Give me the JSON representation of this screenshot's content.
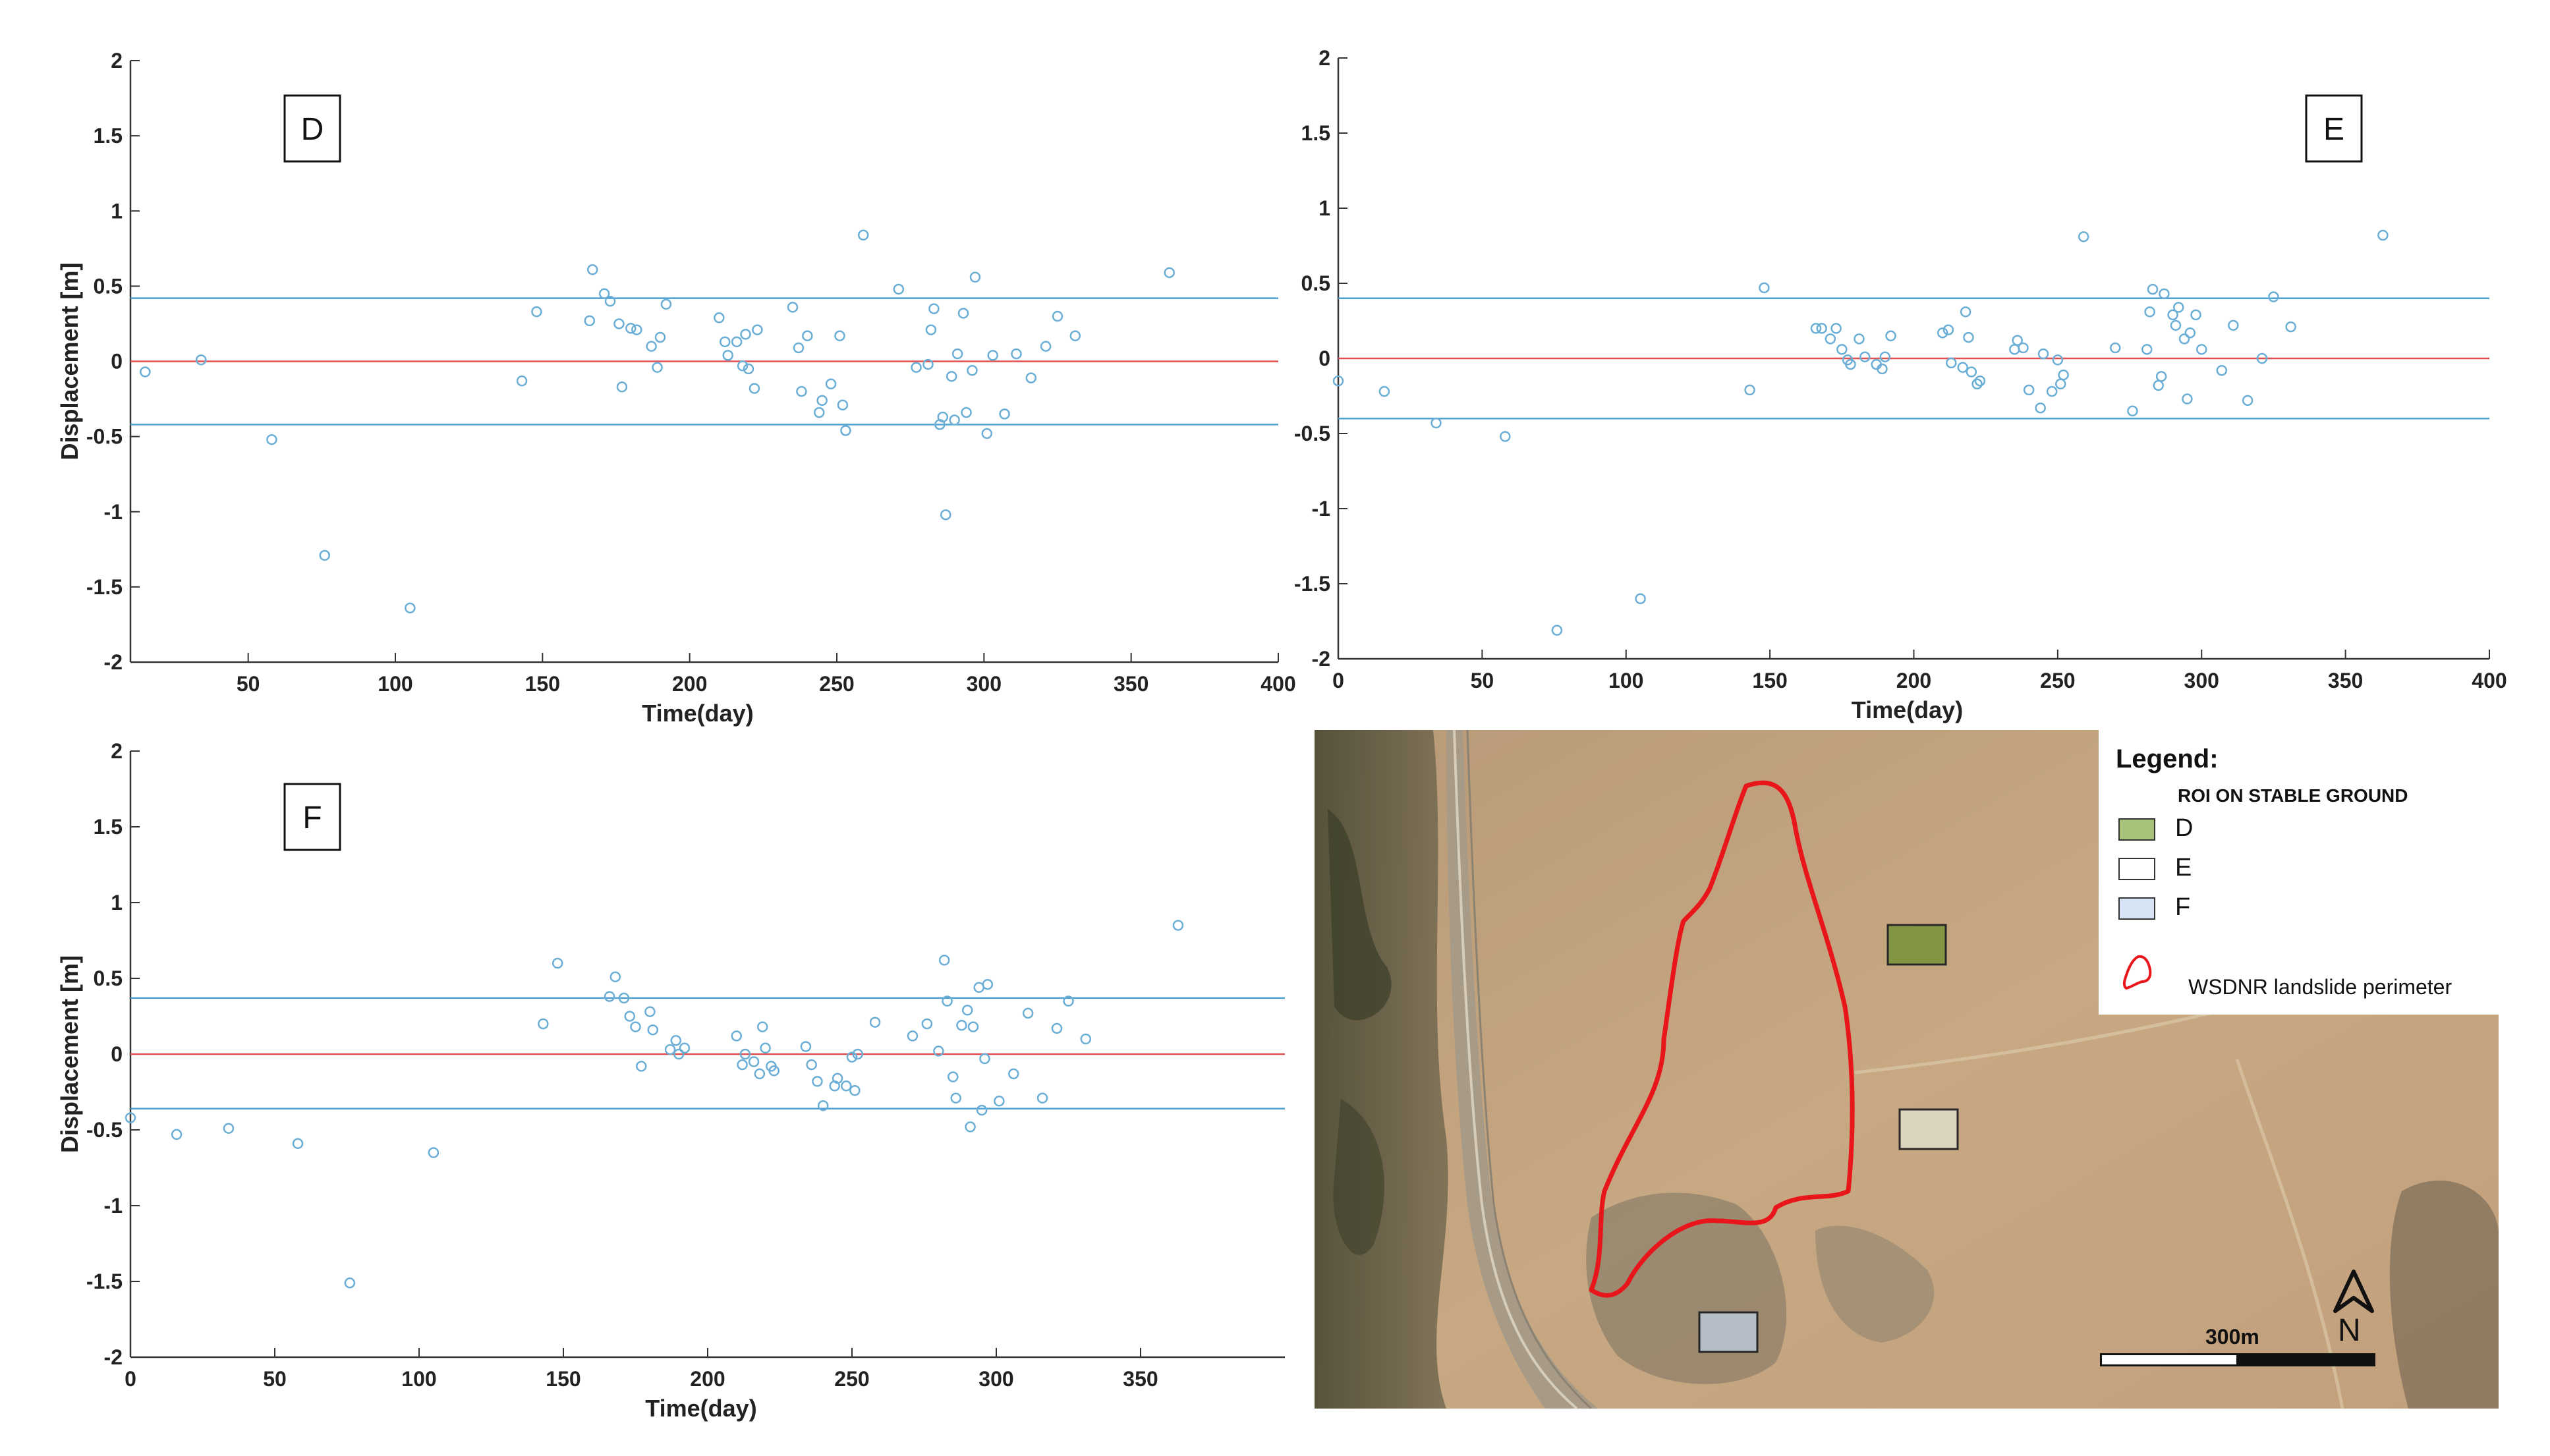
{
  "colors": {
    "marker": "#6aaed6",
    "band": "#4ea0d0",
    "zero": "#e05050",
    "axis": "#333333",
    "perimeter": "#e8161b",
    "roi_d": "#7f9540",
    "roi_e": "#ddd8c4",
    "roi_f": "#b7c1cc"
  },
  "chart_data": [
    {
      "type": "scatter",
      "panel_label": "D",
      "xlabel": "Time(day)",
      "ylabel": "Displacement [m]",
      "xlim": [
        10,
        400
      ],
      "ylim": [
        -2,
        2
      ],
      "x_ticks": [
        50,
        100,
        150,
        200,
        250,
        300,
        350,
        400
      ],
      "y_ticks": [
        -2,
        -1.5,
        -1,
        -0.5,
        0,
        0.5,
        1,
        1.5,
        2
      ],
      "x_tick_labels": [
        "50",
        "100",
        "150",
        "200",
        "250",
        "300",
        "350",
        "400"
      ],
      "y_tick_labels": [
        "-2",
        "-1.5",
        "-1",
        "-0.5",
        "0",
        "0.5",
        "1",
        "1.5",
        "2"
      ],
      "upper_band": 0.42,
      "lower_band": -0.42,
      "grid": false,
      "points": [
        [
          15,
          -0.07
        ],
        [
          34,
          0.01
        ],
        [
          58,
          -0.52
        ],
        [
          76,
          -1.29
        ],
        [
          105,
          -1.64
        ],
        [
          143,
          -0.13
        ],
        [
          148,
          0.33
        ],
        [
          166,
          0.27
        ],
        [
          167,
          0.61
        ],
        [
          171,
          0.45
        ],
        [
          173,
          0.4
        ],
        [
          176,
          0.25
        ],
        [
          177,
          -0.17
        ],
        [
          180,
          0.22
        ],
        [
          182,
          0.21
        ],
        [
          187,
          0.1
        ],
        [
          189,
          -0.04
        ],
        [
          190,
          0.16
        ],
        [
          192,
          0.38
        ],
        [
          210,
          0.29
        ],
        [
          212,
          0.13
        ],
        [
          213,
          0.04
        ],
        [
          216,
          0.13
        ],
        [
          218,
          -0.03
        ],
        [
          219,
          0.18
        ],
        [
          220,
          -0.05
        ],
        [
          222,
          -0.18
        ],
        [
          223,
          0.21
        ],
        [
          235,
          0.36
        ],
        [
          237,
          0.09
        ],
        [
          238,
          -0.2
        ],
        [
          240,
          0.17
        ],
        [
          244,
          -0.34
        ],
        [
          245,
          -0.26
        ],
        [
          248,
          -0.15
        ],
        [
          251,
          0.17
        ],
        [
          252,
          -0.29
        ],
        [
          253,
          -0.46
        ],
        [
          259,
          0.84
        ],
        [
          271,
          0.48
        ],
        [
          277,
          -0.04
        ],
        [
          281,
          -0.02
        ],
        [
          282,
          0.21
        ],
        [
          283,
          0.35
        ],
        [
          285,
          -0.42
        ],
        [
          286,
          -0.37
        ],
        [
          287,
          -1.02
        ],
        [
          289,
          -0.1
        ],
        [
          290,
          -0.39
        ],
        [
          291,
          0.05
        ],
        [
          293,
          0.32
        ],
        [
          294,
          -0.34
        ],
        [
          296,
          -0.06
        ],
        [
          297,
          0.56
        ],
        [
          301,
          -0.48
        ],
        [
          303,
          0.04
        ],
        [
          307,
          -0.35
        ],
        [
          311,
          0.05
        ],
        [
          316,
          -0.11
        ],
        [
          321,
          0.1
        ],
        [
          325,
          0.3
        ],
        [
          331,
          0.17
        ],
        [
          363,
          0.59
        ]
      ]
    },
    {
      "type": "scatter",
      "panel_label": "E",
      "xlabel": "Time(day)",
      "ylabel": "",
      "xlim": [
        0,
        400
      ],
      "ylim": [
        -2,
        2
      ],
      "x_ticks": [
        0,
        50,
        100,
        150,
        200,
        250,
        300,
        350,
        400
      ],
      "y_ticks": [
        -2,
        -1.5,
        -1,
        -0.5,
        0,
        0.5,
        1,
        1.5,
        2
      ],
      "x_tick_labels": [
        "0",
        "50",
        "100",
        "150",
        "200",
        "250",
        "300",
        "350",
        "400"
      ],
      "y_tick_labels": [
        "-2",
        "-1.5",
        "-1",
        "-0.5",
        "0",
        "0.5",
        "1",
        "1.5",
        "2"
      ],
      "upper_band": 0.4,
      "lower_band": -0.4,
      "grid": false,
      "points": [
        [
          0,
          -0.15
        ],
        [
          16,
          -0.22
        ],
        [
          34,
          -0.43
        ],
        [
          58,
          -0.52
        ],
        [
          76,
          -1.81
        ],
        [
          105,
          -1.6
        ],
        [
          143,
          -0.21
        ],
        [
          148,
          0.47
        ],
        [
          166,
          0.2
        ],
        [
          168,
          0.2
        ],
        [
          171,
          0.13
        ],
        [
          173,
          0.2
        ],
        [
          175,
          0.06
        ],
        [
          177,
          -0.01
        ],
        [
          178,
          -0.04
        ],
        [
          181,
          0.13
        ],
        [
          183,
          0.01
        ],
        [
          187,
          -0.04
        ],
        [
          189,
          -0.07
        ],
        [
          190,
          0.01
        ],
        [
          192,
          0.15
        ],
        [
          210,
          0.17
        ],
        [
          212,
          0.19
        ],
        [
          213,
          -0.03
        ],
        [
          217,
          -0.06
        ],
        [
          218,
          0.31
        ],
        [
          219,
          0.14
        ],
        [
          220,
          -0.09
        ],
        [
          222,
          -0.17
        ],
        [
          223,
          -0.15
        ],
        [
          235,
          0.06
        ],
        [
          236,
          0.12
        ],
        [
          238,
          0.07
        ],
        [
          240,
          -0.21
        ],
        [
          244,
          -0.33
        ],
        [
          245,
          0.03
        ],
        [
          248,
          -0.22
        ],
        [
          250,
          -0.01
        ],
        [
          251,
          -0.17
        ],
        [
          252,
          -0.11
        ],
        [
          259,
          0.81
        ],
        [
          270,
          0.07
        ],
        [
          276,
          -0.35
        ],
        [
          281,
          0.06
        ],
        [
          282,
          0.31
        ],
        [
          283,
          0.46
        ],
        [
          285,
          -0.18
        ],
        [
          286,
          -0.12
        ],
        [
          287,
          0.43
        ],
        [
          290,
          0.29
        ],
        [
          291,
          0.22
        ],
        [
          292,
          0.34
        ],
        [
          294,
          0.13
        ],
        [
          295,
          -0.27
        ],
        [
          296,
          0.17
        ],
        [
          298,
          0.29
        ],
        [
          300,
          0.06
        ],
        [
          307,
          -0.08
        ],
        [
          311,
          0.22
        ],
        [
          316,
          -0.28
        ],
        [
          321,
          0.0
        ],
        [
          325,
          0.41
        ],
        [
          331,
          0.21
        ],
        [
          363,
          0.82
        ]
      ]
    },
    {
      "type": "scatter",
      "panel_label": "F",
      "xlabel": "Time(day)",
      "ylabel": "Displacement [m]",
      "xlim": [
        0,
        400
      ],
      "ylim": [
        -2,
        2
      ],
      "x_ticks": [
        0,
        50,
        100,
        150,
        200,
        250,
        300,
        350
      ],
      "y_ticks": [
        -2,
        -1.5,
        -1,
        -0.5,
        0,
        0.5,
        1,
        1.5,
        2
      ],
      "x_tick_labels": [
        "0",
        "50",
        "100",
        "150",
        "200",
        "250",
        "300",
        "350"
      ],
      "y_tick_labels": [
        "-2",
        "-1.5",
        "-1",
        "-0.5",
        "0",
        "0.5",
        "1",
        "1.5",
        "2"
      ],
      "upper_band": 0.37,
      "lower_band": -0.36,
      "grid": false,
      "points": [
        [
          0,
          -0.42
        ],
        [
          16,
          -0.53
        ],
        [
          34,
          -0.49
        ],
        [
          58,
          -0.59
        ],
        [
          76,
          -1.51
        ],
        [
          105,
          -0.65
        ],
        [
          143,
          0.2
        ],
        [
          148,
          0.6
        ],
        [
          166,
          0.38
        ],
        [
          168,
          0.51
        ],
        [
          171,
          0.37
        ],
        [
          173,
          0.25
        ],
        [
          175,
          0.18
        ],
        [
          177,
          -0.08
        ],
        [
          180,
          0.28
        ],
        [
          181,
          0.16
        ],
        [
          187,
          0.03
        ],
        [
          189,
          0.09
        ],
        [
          190,
          0.0
        ],
        [
          192,
          0.04
        ],
        [
          210,
          0.12
        ],
        [
          212,
          -0.07
        ],
        [
          213,
          0.0
        ],
        [
          216,
          -0.05
        ],
        [
          218,
          -0.13
        ],
        [
          219,
          0.18
        ],
        [
          220,
          0.04
        ],
        [
          222,
          -0.08
        ],
        [
          223,
          -0.11
        ],
        [
          234,
          0.05
        ],
        [
          236,
          -0.07
        ],
        [
          238,
          -0.18
        ],
        [
          240,
          -0.34
        ],
        [
          244,
          -0.21
        ],
        [
          245,
          -0.16
        ],
        [
          248,
          -0.21
        ],
        [
          250,
          -0.02
        ],
        [
          251,
          -0.24
        ],
        [
          252,
          0.0
        ],
        [
          258,
          0.21
        ],
        [
          271,
          0.12
        ],
        [
          276,
          0.2
        ],
        [
          280,
          0.02
        ],
        [
          282,
          0.62
        ],
        [
          283,
          0.35
        ],
        [
          285,
          -0.15
        ],
        [
          286,
          -0.29
        ],
        [
          288,
          0.19
        ],
        [
          290,
          0.29
        ],
        [
          291,
          -0.48
        ],
        [
          292,
          0.18
        ],
        [
          294,
          0.44
        ],
        [
          295,
          -0.37
        ],
        [
          296,
          -0.03
        ],
        [
          297,
          0.46
        ],
        [
          301,
          -0.31
        ],
        [
          306,
          -0.13
        ],
        [
          311,
          0.27
        ],
        [
          316,
          -0.29
        ],
        [
          321,
          0.17
        ],
        [
          325,
          0.35
        ],
        [
          331,
          0.1
        ],
        [
          363,
          0.85
        ]
      ]
    }
  ],
  "map": {
    "legend": {
      "title": "Legend:",
      "subtitle": "ROI ON STABLE GROUND",
      "items": [
        {
          "label": "D",
          "color": "#a7c27a"
        },
        {
          "label": "E",
          "color": "#ffffff"
        },
        {
          "label": "F",
          "color": "#d6e3f4"
        }
      ],
      "perimeter_label": "WSDNR landslide perimeter"
    },
    "scale_label": "300m",
    "north_label": "N",
    "roi_labels": [
      "D",
      "E",
      "F"
    ]
  }
}
